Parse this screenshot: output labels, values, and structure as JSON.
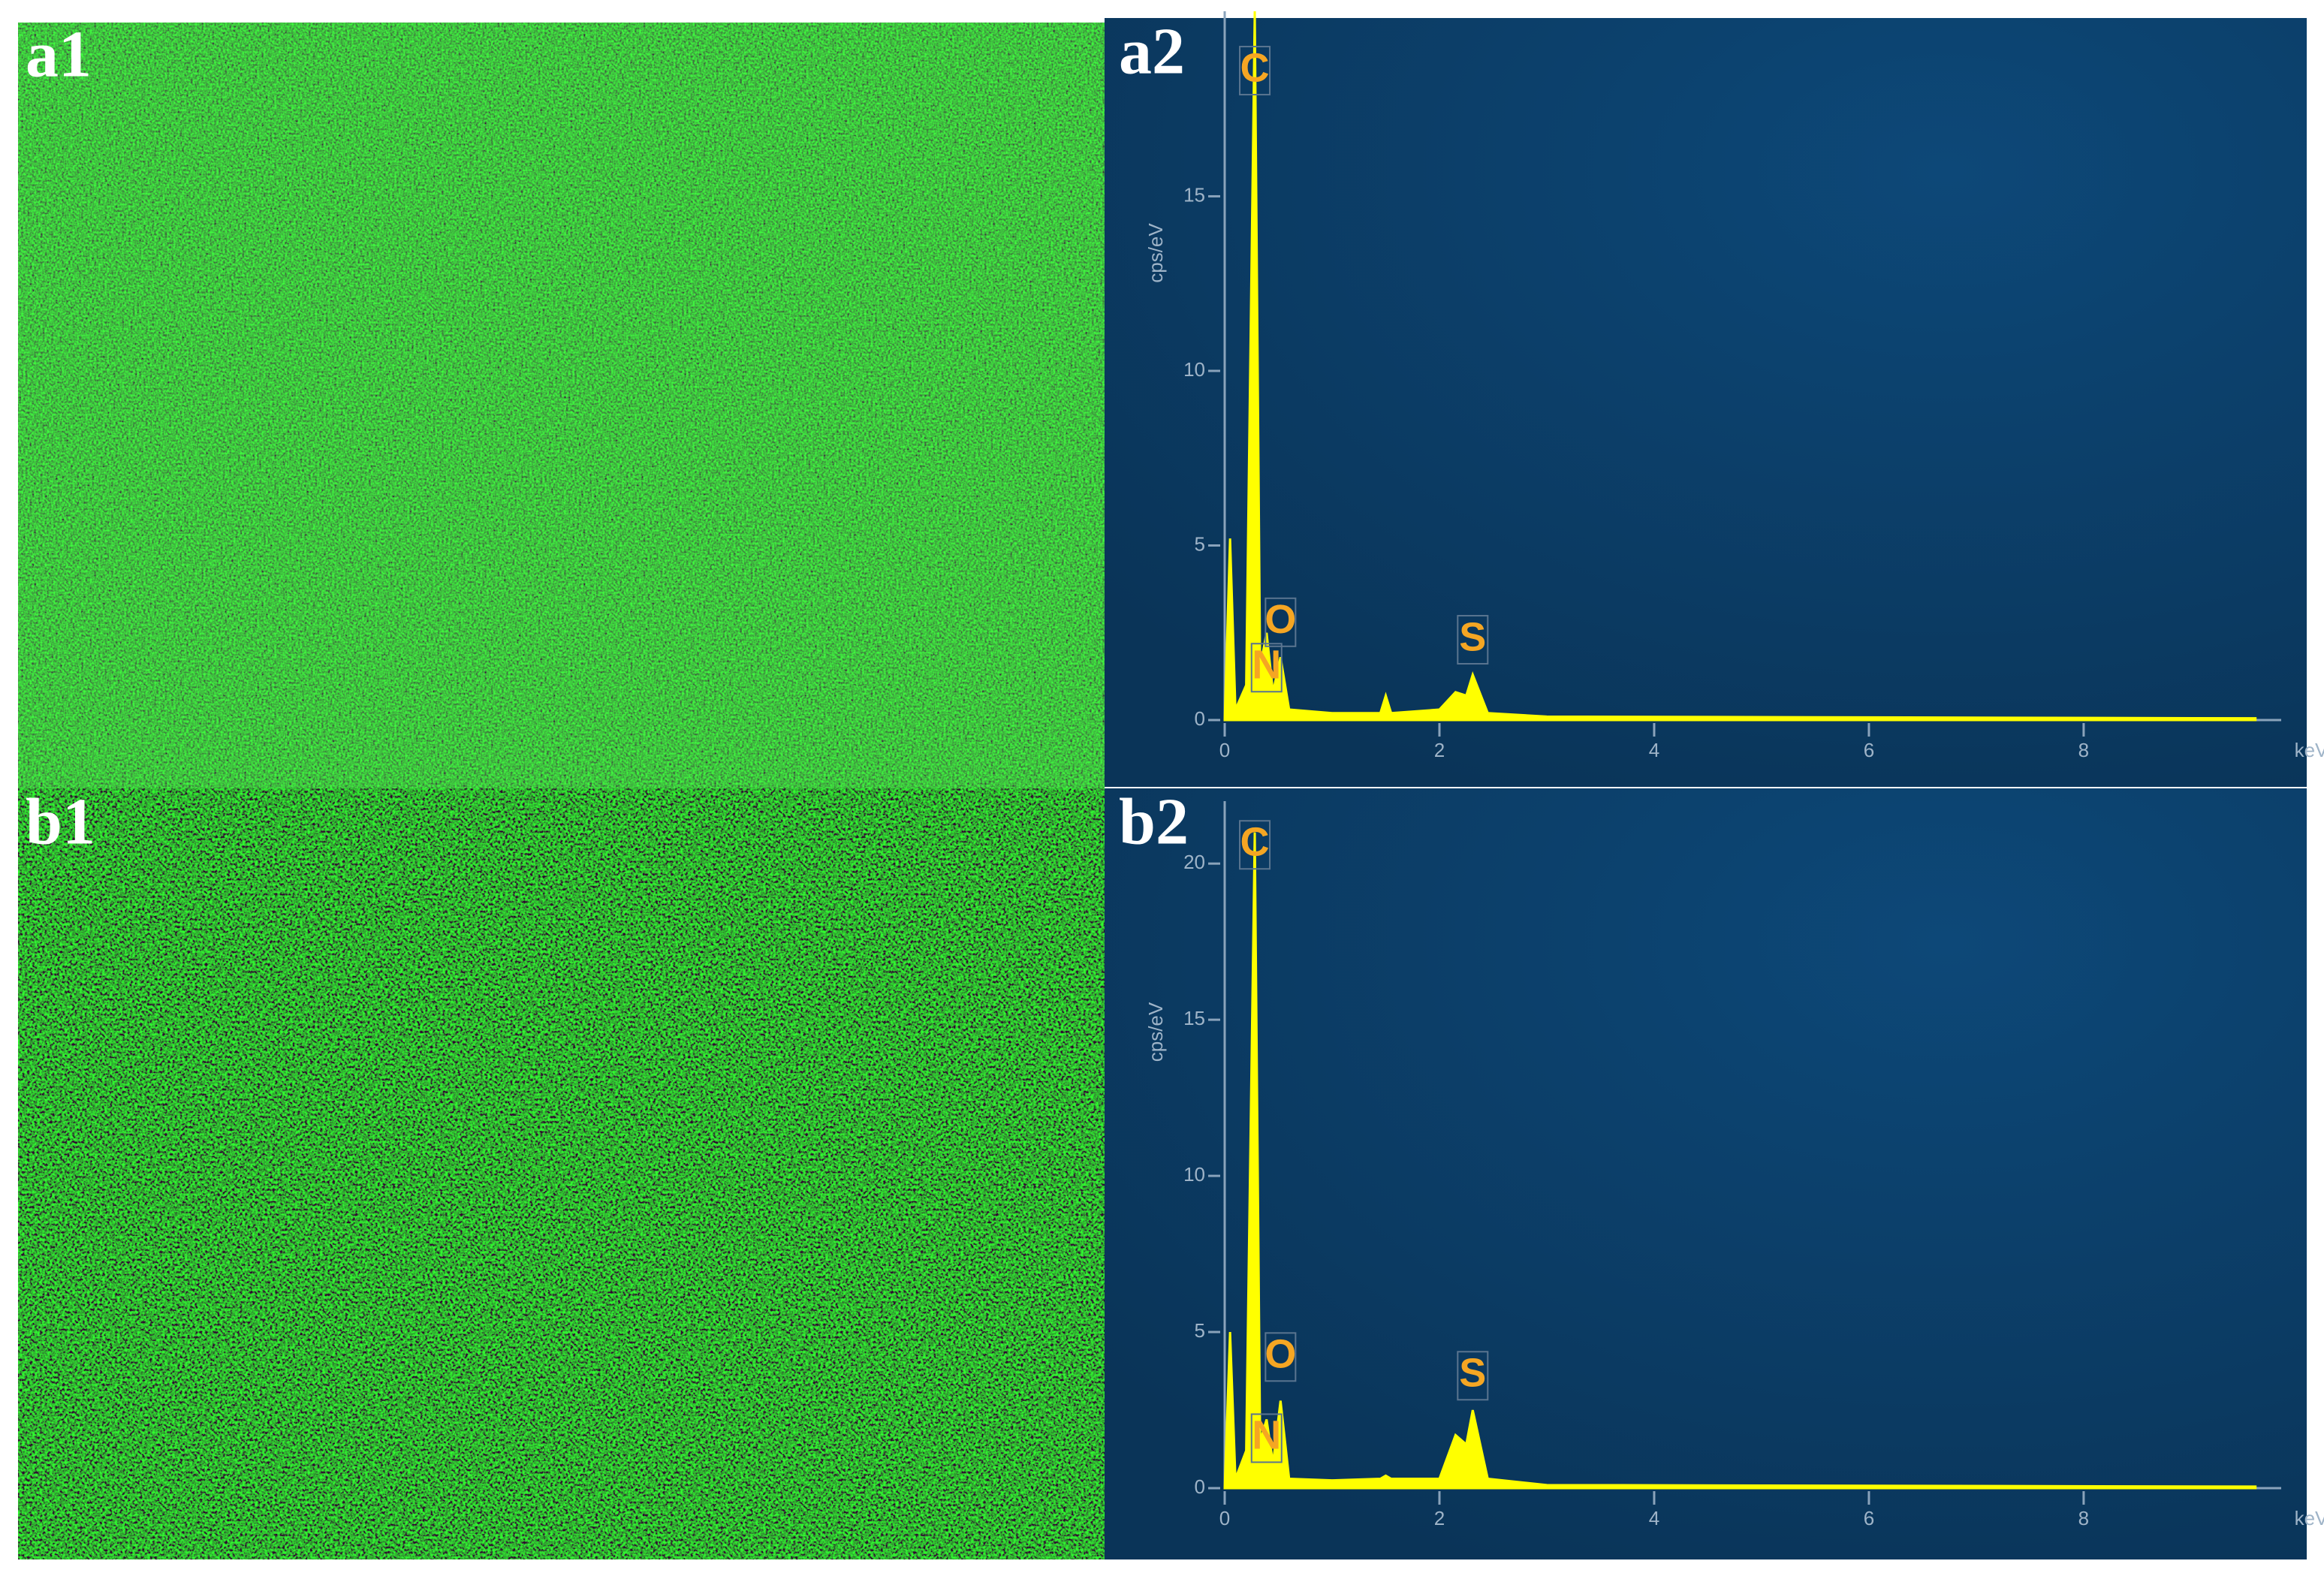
{
  "panels": [
    "a1",
    "b1"
  ],
  "chart_data": [
    {
      "type": "area",
      "label": "a2",
      "ylabel": "cps/eV",
      "xlabel": "keV",
      "color": "#ffff00",
      "x": [
        0,
        0.05,
        0.1,
        0.2,
        0.28,
        0.33,
        0.39,
        0.45,
        0.52,
        0.6,
        1.0,
        1.45,
        1.5,
        1.55,
        2.0,
        2.15,
        2.25,
        2.31,
        2.45,
        3.0,
        9.6
      ],
      "values": [
        0,
        5.2,
        0.3,
        1.0,
        20.3,
        1.5,
        2.5,
        0.8,
        1.8,
        0.3,
        0.2,
        0.2,
        0.7,
        0.2,
        0.3,
        0.8,
        0.7,
        1.3,
        0.2,
        0.1,
        0.05
      ],
      "xlim": [
        0,
        9.7
      ],
      "ylim": [
        0,
        20.3
      ],
      "xticks": [
        0,
        2,
        4,
        6,
        8
      ],
      "yticks": [
        0,
        5,
        10,
        15
      ],
      "peaks": [
        {
          "label": "C",
          "x": 0.28,
          "y": 18.6
        },
        {
          "label": "N",
          "x": 0.39,
          "y": 1.5
        },
        {
          "label": "O",
          "x": 0.52,
          "y": 2.8
        },
        {
          "label": "S",
          "x": 2.31,
          "y": 2.3
        }
      ]
    },
    {
      "type": "area",
      "label": "b2",
      "ylabel": "cps/eV",
      "xlabel": "keV",
      "color": "#ffff00",
      "x": [
        0,
        0.05,
        0.1,
        0.2,
        0.28,
        0.33,
        0.39,
        0.45,
        0.52,
        0.6,
        1.0,
        1.45,
        1.5,
        1.55,
        2.0,
        2.15,
        2.25,
        2.31,
        2.45,
        3.0,
        9.6
      ],
      "values": [
        0,
        5.0,
        0.3,
        1.2,
        21.0,
        1.5,
        2.2,
        0.8,
        2.8,
        0.3,
        0.25,
        0.3,
        0.4,
        0.3,
        0.3,
        1.7,
        1.4,
        2.5,
        0.3,
        0.1,
        0.05
      ],
      "xlim": [
        0,
        9.7
      ],
      "ylim": [
        0,
        22
      ],
      "xticks": [
        0,
        2,
        4,
        6,
        8
      ],
      "yticks": [
        0,
        5,
        10,
        15,
        20
      ],
      "peaks": [
        {
          "label": "C",
          "x": 0.28,
          "y": 20.6
        },
        {
          "label": "N",
          "x": 0.39,
          "y": 1.6
        },
        {
          "label": "O",
          "x": 0.52,
          "y": 4.2
        },
        {
          "label": "S",
          "x": 2.31,
          "y": 3.6
        }
      ]
    }
  ]
}
